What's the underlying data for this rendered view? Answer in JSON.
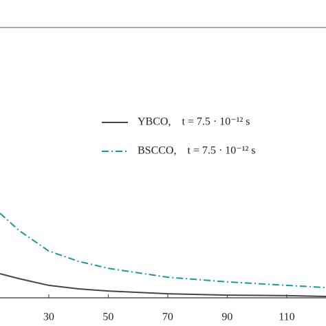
{
  "chart_data": {
    "type": "line",
    "x": [
      13.6,
      20,
      30,
      40,
      50,
      70,
      90,
      110,
      123.2
    ],
    "series": [
      {
        "name": "YBCO,    t = 7.5 · 10⁻¹² s",
        "color": "#444444",
        "dash": "solid",
        "values": [
          0.089,
          0.071,
          0.046,
          0.033,
          0.025,
          0.015,
          0.01,
          0.008,
          0.005
        ]
      },
      {
        "name": "BSCCO,    t = 7.5 · 10⁻¹² s",
        "color": "#139a9a",
        "dash": "dashdot",
        "values": [
          0.313,
          0.249,
          0.173,
          0.135,
          0.109,
          0.076,
          0.059,
          0.046,
          0.038
        ]
      }
    ],
    "xlim": [
      13.6,
      123.2
    ],
    "xticks": [
      30,
      50,
      70,
      90,
      110
    ],
    "ylim": [
      0,
      1
    ]
  }
}
